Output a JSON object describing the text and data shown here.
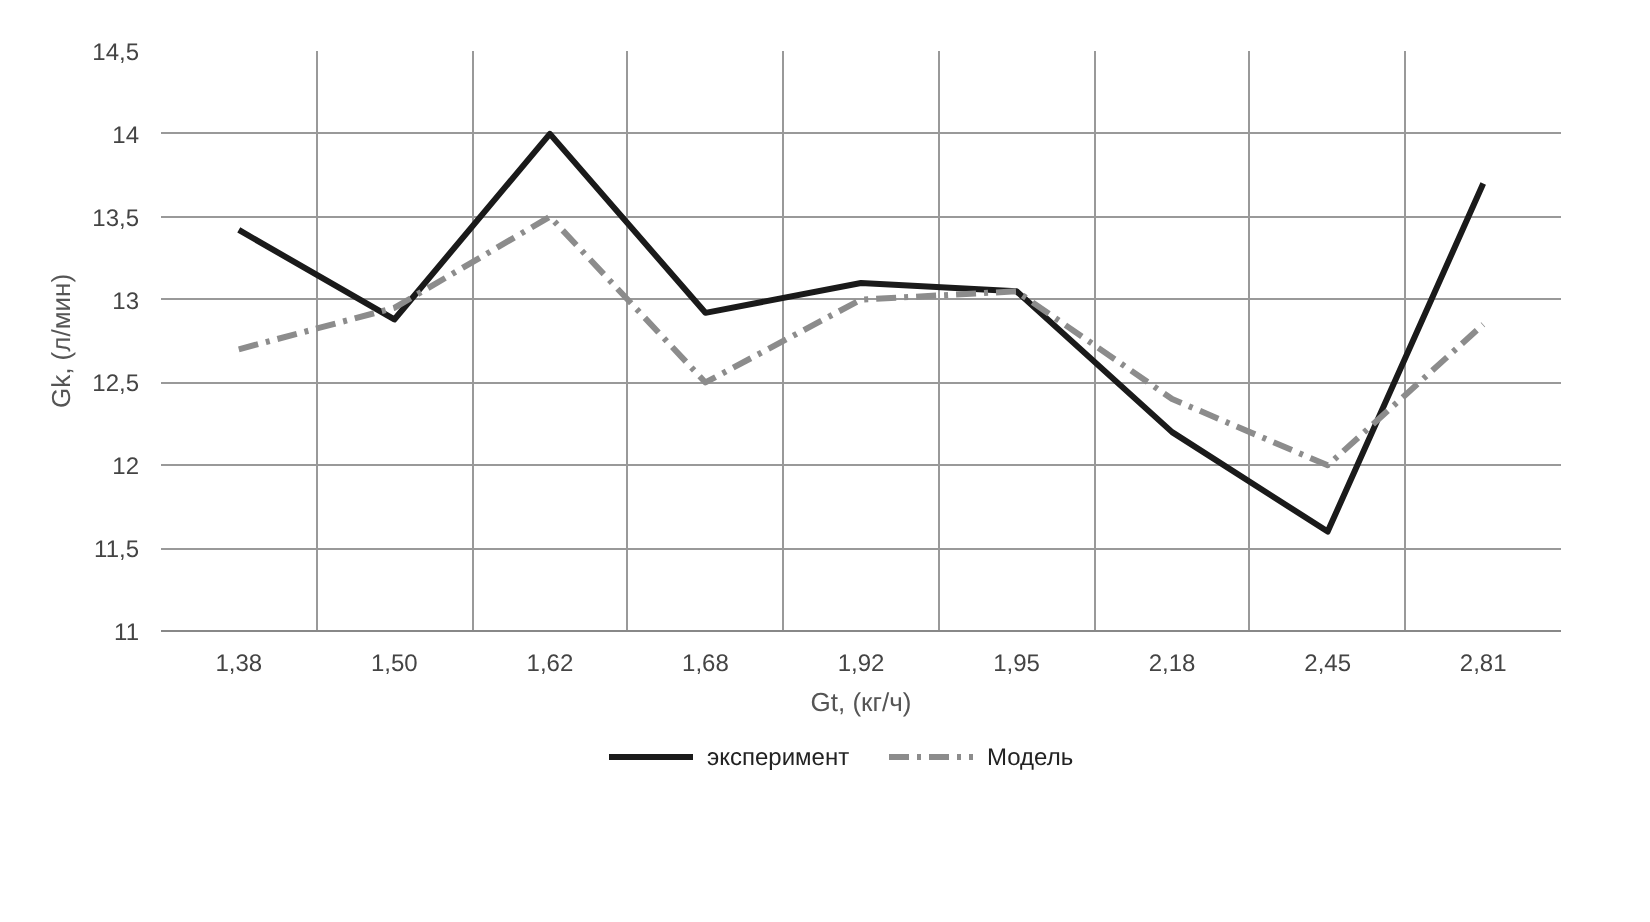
{
  "chart_data": {
    "type": "line",
    "xlabel": "Gt, (кг/ч)",
    "ylabel": "Gk, (л/мин)",
    "categories": [
      "1,38",
      "1,50",
      "1,62",
      "1,68",
      "1,92",
      "1,95",
      "2,18",
      "2,45",
      "2,81"
    ],
    "series": [
      {
        "name": "эксперимент",
        "color": "#1a1a1a",
        "line_style": "solid",
        "values": [
          13.42,
          12.88,
          14.0,
          12.92,
          13.1,
          13.05,
          12.2,
          11.6,
          13.7
        ]
      },
      {
        "name": "Модель",
        "color": "#8c8c8c",
        "line_style": "dashdot",
        "values": [
          12.7,
          12.95,
          13.5,
          12.5,
          13.0,
          13.05,
          12.4,
          12.0,
          12.85
        ]
      }
    ],
    "ylim": [
      11,
      14.5
    ],
    "yticks": [
      11,
      {
        "value": 11.5,
        "label": "11,5"
      },
      12,
      {
        "value": 12.5,
        "label": "12,5"
      },
      13,
      {
        "value": 13.5,
        "label": "13,5"
      },
      14,
      {
        "value": 14.5,
        "label": "14,5"
      }
    ],
    "grid": true,
    "legend": "bottom",
    "marker": "none"
  }
}
